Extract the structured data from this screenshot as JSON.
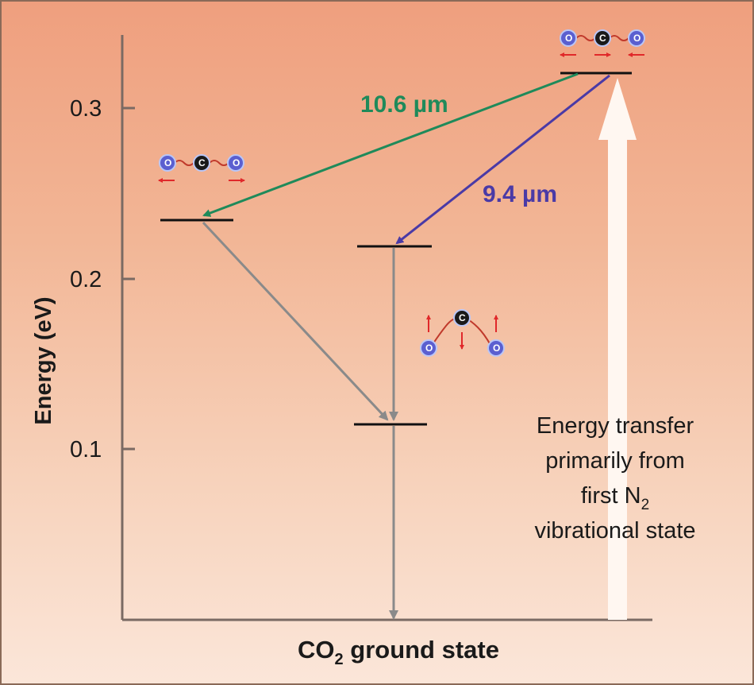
{
  "axis": {
    "ylabel": "Energy (eV)",
    "ticks": [
      "0.3",
      "0.2",
      "0.1"
    ],
    "ylim": [
      0.0,
      0.34
    ]
  },
  "xlabel": {
    "prefix": "CO",
    "sub": "2",
    "suffix": " ground state"
  },
  "transitions": {
    "green": {
      "label": "10.6 µm",
      "color": "#1f8a5a"
    },
    "blue": {
      "label": "9.4 µm",
      "color": "#4a3aa6"
    }
  },
  "annotation": {
    "line1": "Energy transfer",
    "line2": "primarily from",
    "line3_prefix": "first N",
    "line3_sub": "2",
    "line4": "vibrational state"
  },
  "molecules": {
    "o_letter": "O",
    "c_letter": "C"
  },
  "colors": {
    "axis": "#7a6a63",
    "level": "#111111",
    "decay": "#8a8a8a",
    "pump": "#fff7f1",
    "oxygen": "#5b5fd0",
    "carbon": "#1a1a1a",
    "motion_arrow": "#e0282a",
    "bond": "#c0392b"
  }
}
